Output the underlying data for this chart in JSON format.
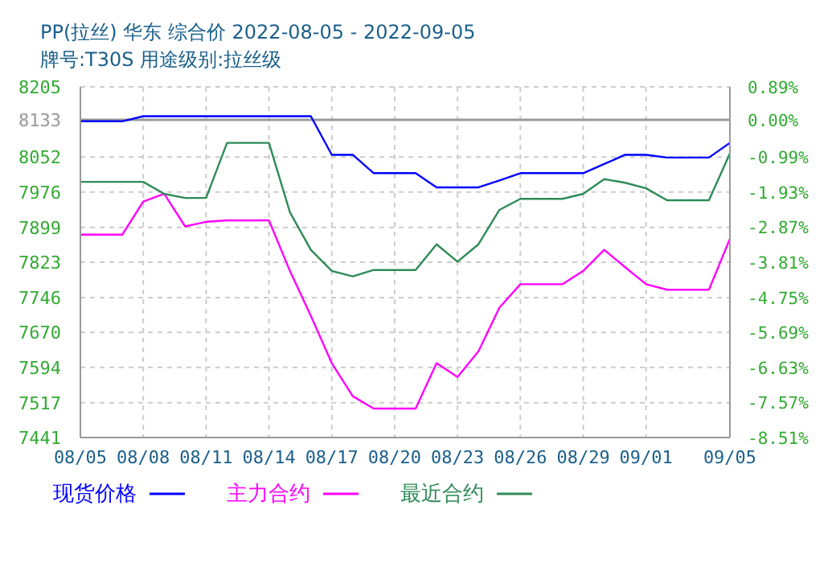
{
  "chart_data": {
    "type": "line",
    "title": "PP(拉丝) 华东 综合价 2022-08-05 - 2022-09-05",
    "subtitle": "牌号:T30S 用途级别:拉丝级",
    "x": [
      "--08-05",
      "--08-06",
      "--08-07",
      "--08-08",
      "--08-09",
      "--08-10",
      "--08-11",
      "--08-12",
      "--08-13",
      "--08-14",
      "--08-15",
      "--08-16",
      "--08-17",
      "--08-18",
      "--08-19",
      "--08-20",
      "--08-21",
      "--08-22",
      "--08-23",
      "--08-24",
      "--08-25",
      "--08-26",
      "--08-27",
      "--08-28",
      "--08-29",
      "--08-30",
      "--08-31",
      "--09-01",
      "--09-02",
      "--09-03",
      "--09-04",
      "--09-05"
    ],
    "series": [
      {
        "name": "现货价格",
        "color": "#0000ff",
        "values": [
          8130,
          8130,
          8130,
          8141,
          8141,
          8141,
          8141,
          8141,
          8141,
          8141,
          8141,
          8141,
          8057,
          8057,
          8017,
          8017,
          8017,
          7986,
          7986,
          7986,
          8001,
          8017,
          8017,
          8017,
          8017,
          8037,
          8057,
          8057,
          8051,
          8051,
          8051,
          8083
        ]
      },
      {
        "name": "主力合约",
        "color": "#ff00ff",
        "values": [
          7883,
          7883,
          7883,
          7955,
          7972,
          7901,
          7911,
          7914,
          7914,
          7914,
          7804,
          7706,
          7603,
          7531,
          7504,
          7504,
          7504,
          7603,
          7573,
          7629,
          7724,
          7775,
          7775,
          7775,
          7804,
          7850,
          7812,
          7775,
          7763,
          7763,
          7763,
          7874
        ]
      },
      {
        "name": "最近合约",
        "color": "#2e8b57",
        "values": [
          7998,
          7998,
          7998,
          7998,
          7972,
          7963,
          7963,
          8083,
          8083,
          8083,
          7932,
          7850,
          7804,
          7792,
          7806,
          7806,
          7806,
          7862,
          7824,
          7862,
          7937,
          7961,
          7961,
          7961,
          7972,
          8004,
          7996,
          7984,
          7958,
          7958,
          7958,
          8060
        ]
      }
    ],
    "xlim": [
      "--08-05",
      "--09-05"
    ],
    "xticks": [
      {
        "value": "--08-05",
        "label": "08/05"
      },
      {
        "value": "--08-08",
        "label": "08/08"
      },
      {
        "value": "--08-11",
        "label": "08/11"
      },
      {
        "value": "--08-14",
        "label": "08/14"
      },
      {
        "value": "--08-17",
        "label": "08/17"
      },
      {
        "value": "--08-20",
        "label": "08/20"
      },
      {
        "value": "--08-23",
        "label": "08/23"
      },
      {
        "value": "--08-26",
        "label": "08/26"
      },
      {
        "value": "--08-29",
        "label": "08/29"
      },
      {
        "value": "--09-01",
        "label": "09/01"
      },
      {
        "value": "--09-05",
        "label": "09/05"
      }
    ],
    "ylim": [
      7441,
      8205
    ],
    "yticks": [
      7441,
      7517,
      7594,
      7670,
      7746,
      7823,
      7899,
      7976,
      8052,
      8133,
      8205
    ],
    "y2lim": [
      -8.51,
      0.89
    ],
    "y2ticks": [
      {
        "value": -8.51,
        "label": "-8.51%"
      },
      {
        "value": -7.57,
        "label": "-7.57%"
      },
      {
        "value": -6.63,
        "label": "-6.63%"
      },
      {
        "value": -5.69,
        "label": "-5.69%"
      },
      {
        "value": -4.75,
        "label": "-4.75%"
      },
      {
        "value": -3.81,
        "label": "-3.81%"
      },
      {
        "value": -2.87,
        "label": "-2.87%"
      },
      {
        "value": -1.93,
        "label": "-1.93%"
      },
      {
        "value": -0.99,
        "label": "-0.99%"
      },
      {
        "value": 0,
        "label": "0.00%"
      },
      {
        "value": 0.89,
        "label": "0.89%"
      }
    ],
    "ref_lines": [
      {
        "axis": "y",
        "value": 8133,
        "color": "#999999"
      }
    ],
    "grid": true,
    "legend": "bottom",
    "marker": "none",
    "line_style": "solid"
  }
}
